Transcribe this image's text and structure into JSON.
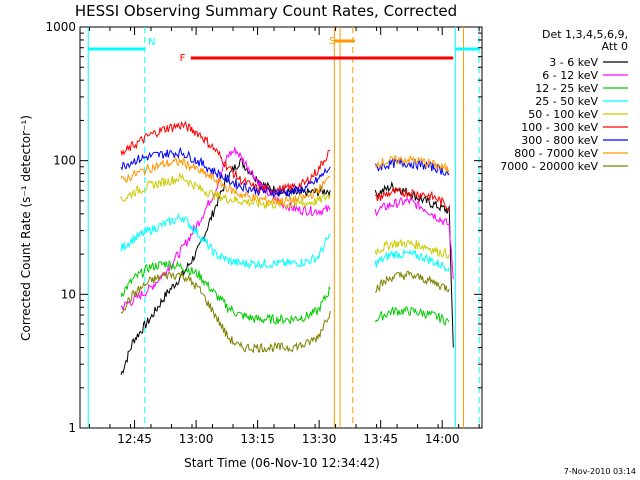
{
  "chart_data": {
    "type": "line",
    "title": "HESSI Observing Summary Count Rates, Corrected",
    "xlabel": "Start Time (06-Nov-10 12:34:42)",
    "ylabel": "Corrected Count Rate (s⁻¹ detector⁻¹)",
    "x_unit": "minutes after 12:34:42",
    "xlim": [
      0,
      72.3
    ],
    "ylim": [
      1,
      1000
    ],
    "y_scale": "log",
    "x_ticks": [
      {
        "label": "12:45",
        "x": 10.3
      },
      {
        "label": "13:00",
        "x": 25.3
      },
      {
        "label": "13:15",
        "x": 40.3
      },
      {
        "label": "13:30",
        "x": 55.3
      },
      {
        "label": "13:45",
        "x": 70.3
      },
      {
        "label": "14:00",
        "x": 85.3
      }
    ],
    "y_ticks": [
      {
        "label": "1",
        "v": 1
      },
      {
        "label": "10",
        "v": 10
      },
      {
        "label": "100",
        "v": 100
      },
      {
        "label": "1000",
        "v": 1000
      }
    ],
    "legend_header": [
      "Det 1,3,4,5,6,9,",
      "Att 0"
    ],
    "legend_position": "right",
    "timestamp": "7-Nov-2010 03:14",
    "series": [
      {
        "name": "3 - 6 keV",
        "color": "#000000",
        "points": [
          [
            5,
            2.5
          ],
          [
            8,
            4.5
          ],
          [
            12,
            6.5
          ],
          [
            16,
            10
          ],
          [
            20,
            14
          ],
          [
            24,
            22
          ],
          [
            28,
            45
          ],
          [
            31,
            75
          ],
          [
            34,
            100
          ],
          [
            37,
            80
          ],
          [
            40,
            65
          ],
          [
            44,
            58
          ],
          [
            48,
            57
          ],
          [
            52,
            58
          ],
          [
            56,
            60
          ],
          null,
          [
            67,
            56
          ],
          [
            71,
            64
          ],
          [
            75,
            58
          ],
          [
            79,
            50
          ],
          [
            82,
            46
          ],
          [
            85,
            42
          ],
          [
            86,
            4
          ]
        ]
      },
      {
        "name": "6 - 12 keV",
        "color": "#ff00ff",
        "points": [
          [
            5,
            8
          ],
          [
            8,
            9
          ],
          [
            12,
            11
          ],
          [
            16,
            15
          ],
          [
            20,
            22
          ],
          [
            24,
            35
          ],
          [
            28,
            60
          ],
          [
            31,
            110
          ],
          [
            33,
            120
          ],
          [
            36,
            90
          ],
          [
            40,
            60
          ],
          [
            44,
            48
          ],
          [
            48,
            43
          ],
          [
            52,
            42
          ],
          [
            56,
            43
          ],
          null,
          [
            67,
            42
          ],
          [
            71,
            47
          ],
          [
            75,
            50
          ],
          [
            79,
            44
          ],
          [
            82,
            38
          ],
          [
            85,
            33
          ],
          [
            86,
            13
          ]
        ]
      },
      {
        "name": "12 - 25 keV",
        "color": "#00cc00",
        "points": [
          [
            5,
            10
          ],
          [
            8,
            13
          ],
          [
            12,
            16
          ],
          [
            16,
            17
          ],
          [
            20,
            16
          ],
          [
            24,
            14
          ],
          [
            28,
            10
          ],
          [
            31,
            8
          ],
          [
            34,
            7
          ],
          [
            38,
            6.5
          ],
          [
            42,
            6.5
          ],
          [
            46,
            6.5
          ],
          [
            50,
            6.8
          ],
          [
            53,
            7.5
          ],
          [
            56,
            11
          ],
          null,
          [
            67,
            6.5
          ],
          [
            71,
            7.5
          ],
          [
            75,
            7.5
          ],
          [
            79,
            7.2
          ],
          [
            82,
            6.8
          ],
          [
            85,
            6.2
          ]
        ]
      },
      {
        "name": "25 - 50 keV",
        "color": "#00ffff",
        "points": [
          [
            5,
            22
          ],
          [
            8,
            26
          ],
          [
            12,
            30
          ],
          [
            16,
            34
          ],
          [
            20,
            38
          ],
          [
            24,
            28
          ],
          [
            28,
            20
          ],
          [
            31,
            18
          ],
          [
            34,
            17
          ],
          [
            38,
            17
          ],
          [
            42,
            17
          ],
          [
            46,
            17
          ],
          [
            50,
            17.5
          ],
          [
            53,
            19
          ],
          [
            56,
            28
          ],
          null,
          [
            67,
            17
          ],
          [
            71,
            20
          ],
          [
            75,
            20
          ],
          [
            79,
            19
          ],
          [
            82,
            17
          ],
          [
            85,
            16
          ]
        ]
      },
      {
        "name": "50 - 100 keV",
        "color": "#cccc00",
        "points": [
          [
            5,
            50
          ],
          [
            8,
            58
          ],
          [
            12,
            65
          ],
          [
            16,
            70
          ],
          [
            20,
            75
          ],
          [
            24,
            62
          ],
          [
            28,
            55
          ],
          [
            31,
            52
          ],
          [
            34,
            50
          ],
          [
            38,
            48
          ],
          [
            42,
            47
          ],
          [
            46,
            47
          ],
          [
            50,
            48
          ],
          [
            53,
            50
          ],
          [
            56,
            55
          ],
          null,
          [
            67,
            21
          ],
          [
            71,
            24
          ],
          [
            75,
            24
          ],
          [
            79,
            23
          ],
          [
            82,
            21
          ],
          [
            85,
            20
          ]
        ]
      },
      {
        "name": "100 - 300 keV",
        "color": "#ff0000",
        "points": [
          [
            5,
            110
          ],
          [
            8,
            130
          ],
          [
            12,
            155
          ],
          [
            16,
            175
          ],
          [
            20,
            185
          ],
          [
            24,
            160
          ],
          [
            28,
            120
          ],
          [
            31,
            90
          ],
          [
            34,
            72
          ],
          [
            38,
            62
          ],
          [
            42,
            60
          ],
          [
            46,
            62
          ],
          [
            50,
            68
          ],
          [
            53,
            85
          ],
          [
            56,
            120
          ],
          null,
          [
            67,
            52
          ],
          [
            71,
            58
          ],
          [
            75,
            58
          ],
          [
            79,
            56
          ],
          [
            82,
            52
          ],
          [
            85,
            45
          ]
        ]
      },
      {
        "name": "300 - 800 keV",
        "color": "#0000ff",
        "points": [
          [
            5,
            90
          ],
          [
            8,
            100
          ],
          [
            12,
            108
          ],
          [
            16,
            113
          ],
          [
            20,
            115
          ],
          [
            24,
            98
          ],
          [
            28,
            82
          ],
          [
            31,
            72
          ],
          [
            34,
            65
          ],
          [
            38,
            60
          ],
          [
            42,
            58
          ],
          [
            46,
            58
          ],
          [
            50,
            62
          ],
          [
            53,
            72
          ],
          [
            56,
            90
          ],
          null,
          [
            67,
            88
          ],
          [
            71,
            95
          ],
          [
            75,
            96
          ],
          [
            79,
            92
          ],
          [
            82,
            88
          ],
          [
            85,
            80
          ]
        ]
      },
      {
        "name": "800 - 7000 keV",
        "color": "#ff9900",
        "points": [
          [
            5,
            70
          ],
          [
            8,
            78
          ],
          [
            12,
            88
          ],
          [
            16,
            95
          ],
          [
            20,
            98
          ],
          [
            24,
            84
          ],
          [
            28,
            72
          ],
          [
            31,
            62
          ],
          [
            34,
            56
          ],
          [
            38,
            52
          ],
          [
            42,
            50
          ],
          [
            46,
            50
          ],
          [
            50,
            53
          ],
          [
            53,
            60
          ],
          [
            56,
            75
          ],
          null,
          [
            67,
            95
          ],
          [
            71,
            100
          ],
          [
            75,
            102
          ],
          [
            79,
            98
          ],
          [
            82,
            92
          ],
          [
            85,
            85
          ]
        ]
      },
      {
        "name": "7000 - 20000 keV",
        "color": "#808000",
        "points": [
          [
            5,
            7.5
          ],
          [
            8,
            10
          ],
          [
            12,
            12.5
          ],
          [
            16,
            14
          ],
          [
            20,
            14
          ],
          [
            24,
            11
          ],
          [
            28,
            7
          ],
          [
            31,
            4.8
          ],
          [
            34,
            4
          ],
          [
            38,
            4
          ],
          [
            42,
            4
          ],
          [
            46,
            4
          ],
          [
            50,
            4.2
          ],
          [
            53,
            4.8
          ],
          [
            56,
            7.5
          ],
          null,
          [
            67,
            11
          ],
          [
            71,
            13.5
          ],
          [
            75,
            14
          ],
          [
            79,
            13
          ],
          [
            82,
            12
          ],
          [
            85,
            11
          ]
        ]
      }
    ],
    "annotations": {
      "N": {
        "label": "N",
        "color": "#00ffff"
      },
      "F": {
        "label": "F",
        "color": "#ff0000"
      },
      "S": {
        "label": "S",
        "color": "#ff9900"
      }
    },
    "state_bars": [
      {
        "name": "N",
        "color": "#00ffff",
        "segments": [
          [
            -3,
            10.8
          ],
          [
            86.5,
            92.3
          ]
        ]
      },
      {
        "name": "F",
        "color": "#ff0000",
        "segments": [
          [
            22,
            86
          ]
        ]
      },
      {
        "name": "S",
        "color": "#ff9900",
        "segments": [
          [
            57,
            62
          ]
        ]
      }
    ],
    "vlines": [
      {
        "x": -3,
        "color": "#00ffff",
        "style": "solid"
      },
      {
        "x": 10.8,
        "color": "#00ffff",
        "style": "dashed"
      },
      {
        "x": 86.5,
        "color": "#00ffff",
        "style": "solid"
      },
      {
        "x": 92.3,
        "color": "#00ffff",
        "style": "dashed"
      },
      {
        "x": 57.0,
        "color": "#ff9900",
        "style": "solid"
      },
      {
        "x": 58.4,
        "color": "#ff9900",
        "style": "solid"
      },
      {
        "x": 61.5,
        "color": "#ff9900",
        "style": "dashed"
      },
      {
        "x": 88.5,
        "color": "#ff9900",
        "style": "solid"
      }
    ]
  }
}
